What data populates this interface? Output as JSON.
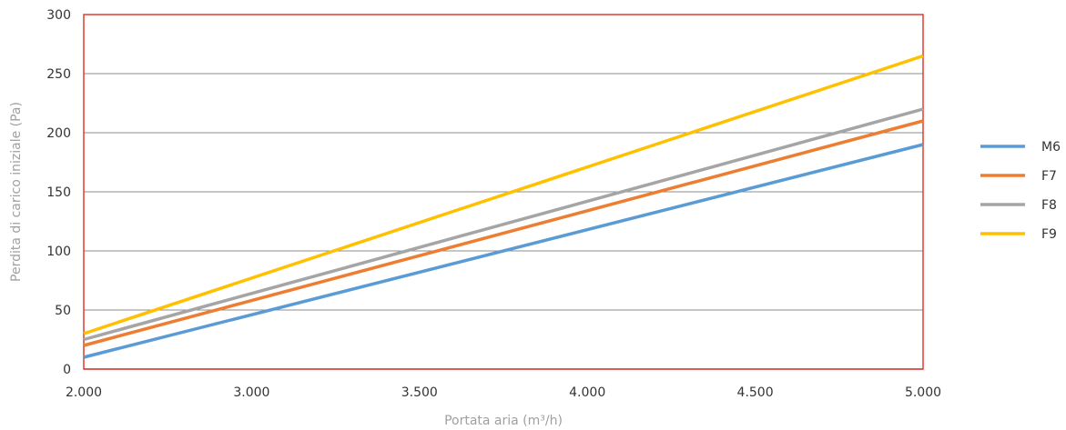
{
  "chart_data": {
    "type": "line",
    "xlabel": "Portata aria (m³/h)",
    "ylabel": "Perdita di carico iniziale (Pa)",
    "x_tick_labels": [
      "2.000",
      "3.000",
      "3.500",
      "4.000",
      "4.500",
      "5.000"
    ],
    "y_tick_labels": [
      "0",
      "50",
      "100",
      "150",
      "200",
      "250",
      "300"
    ],
    "y_ticks": [
      0,
      50,
      100,
      150,
      200,
      250,
      300
    ],
    "ylim": [
      0,
      300
    ],
    "grid": true,
    "legend_position": "right",
    "series": [
      {
        "name": "M6",
        "color": "#5b9bd5",
        "start": 10,
        "end": 190
      },
      {
        "name": "F7",
        "color": "#ed7d31",
        "start": 20,
        "end": 210
      },
      {
        "name": "F8",
        "color": "#a5a5a5",
        "start": 25,
        "end": 220
      },
      {
        "name": "F9",
        "color": "#ffc000",
        "start": 30,
        "end": 265
      }
    ],
    "frame_color": "#e03c31"
  }
}
